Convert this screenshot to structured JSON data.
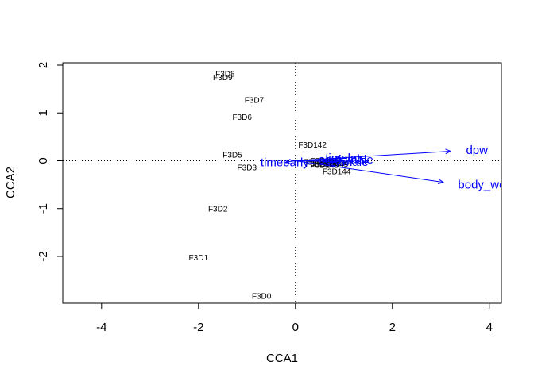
{
  "chart_data": {
    "type": "scatter",
    "xlabel": "CCA1",
    "ylabel": "CCA2",
    "xlim": [
      -4.8,
      4.25
    ],
    "ylim": [
      -2.98,
      2.05
    ],
    "xticks": [
      -4,
      -2,
      0,
      2,
      4
    ],
    "yticks": [
      -2,
      -1,
      0,
      1,
      2
    ],
    "reference_lines": {
      "x": 0,
      "y": 0,
      "style": "dotted"
    },
    "sites": [
      {
        "label": "F3D8",
        "x": -1.45,
        "y": 1.83
      },
      {
        "label": "F3D9",
        "x": -1.5,
        "y": 1.75
      },
      {
        "label": "F3D7",
        "x": -0.85,
        "y": 1.28
      },
      {
        "label": "F3D6",
        "x": -1.1,
        "y": 0.92
      },
      {
        "label": "F3D5",
        "x": -1.3,
        "y": 0.13
      },
      {
        "label": "F3D3",
        "x": -1.0,
        "y": -0.13
      },
      {
        "label": "F3D2",
        "x": -1.6,
        "y": -1.0
      },
      {
        "label": "F3D1",
        "x": -2.0,
        "y": -2.02
      },
      {
        "label": "F3D0",
        "x": -0.7,
        "y": -2.82
      },
      {
        "label": "F3D142",
        "x": 0.35,
        "y": 0.34
      },
      {
        "label": "F3D141",
        "x": 0.45,
        "y": -0.02
      },
      {
        "label": "F3D143",
        "x": 0.6,
        "y": -0.08
      },
      {
        "label": "F3D145",
        "x": 0.75,
        "y": -0.03
      },
      {
        "label": "F3D146",
        "x": 0.6,
        "y": 0.01
      },
      {
        "label": "F3D147",
        "x": 0.9,
        "y": -0.04
      },
      {
        "label": "F3D148",
        "x": 0.5,
        "y": -0.06
      },
      {
        "label": "F3D149",
        "x": 0.8,
        "y": -0.07
      },
      {
        "label": "F3D150",
        "x": 0.65,
        "y": -0.05
      },
      {
        "label": "F3D144",
        "x": 0.85,
        "y": -0.22
      }
    ],
    "biplot_vectors": [
      {
        "label": "dpw",
        "x": 3.2,
        "y": 0.2
      },
      {
        "label": "body_weight",
        "x": 3.05,
        "y": -0.45
      },
      {
        "label": "timelate",
        "x": 0.95,
        "y": 0.05
      },
      {
        "label": "timeearly",
        "x": -0.2,
        "y": -0.03
      },
      {
        "label": "sexfemale",
        "x": 0.95,
        "y": 0.02
      },
      {
        "label": "sexmale",
        "x": 0.95,
        "y": -0.02
      }
    ],
    "styles": {
      "site_color": "#000000",
      "vector_color": "#0000ff"
    }
  }
}
